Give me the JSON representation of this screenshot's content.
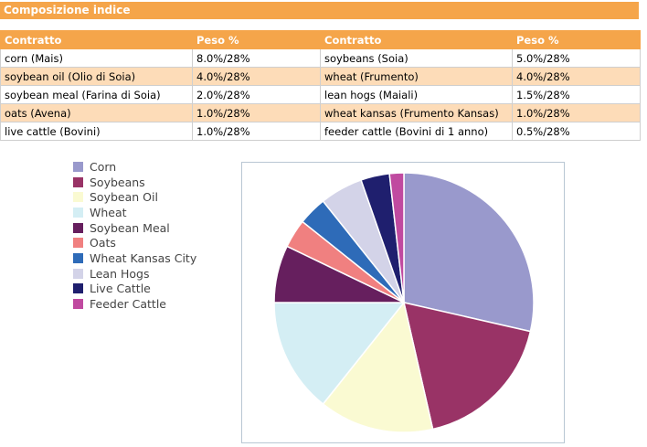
{
  "header": {
    "title": "Composizione indice"
  },
  "table": {
    "headers": [
      "Contratto",
      "Peso %",
      "Contratto",
      "Peso %"
    ],
    "rows": [
      [
        "corn (Mais)",
        "8.0%/28%",
        "soybeans (Soia)",
        "5.0%/28%"
      ],
      [
        "soybean oil (Olio di Soia)",
        "4.0%/28%",
        "wheat (Frumento)",
        "4.0%/28%"
      ],
      [
        "soybean meal (Farina di Soia)",
        "2.0%/28%",
        "lean hogs (Maiali)",
        "1.5%/28%"
      ],
      [
        "oats (Avena)",
        "1.0%/28%",
        "wheat kansas (Frumento Kansas)",
        "1.0%/28%"
      ],
      [
        "live cattle (Bovini)",
        "1.0%/28%",
        "feeder cattle (Bovini di 1 anno)",
        "0.5%/28%"
      ]
    ]
  },
  "chart_data": {
    "type": "pie",
    "legend_position": "left",
    "slices": [
      {
        "label": "Corn",
        "value": 8.0,
        "color": "#9999cc"
      },
      {
        "label": "Soybeans",
        "value": 5.0,
        "color": "#993366"
      },
      {
        "label": "Soybean Oil",
        "value": 4.0,
        "color": "#fafad2"
      },
      {
        "label": "Wheat",
        "value": 4.0,
        "color": "#d4eef4"
      },
      {
        "label": "Soybean Meal",
        "value": 2.0,
        "color": "#661f5e"
      },
      {
        "label": "Oats",
        "value": 1.0,
        "color": "#f08080"
      },
      {
        "label": "Wheat Kansas City",
        "value": 1.0,
        "color": "#2e6bb8"
      },
      {
        "label": "Lean Hogs",
        "value": 1.5,
        "color": "#d3d3e8"
      },
      {
        "label": "Live Cattle",
        "value": 1.0,
        "color": "#1f1f6e"
      },
      {
        "label": "Feeder Cattle",
        "value": 0.5,
        "color": "#c04aa0"
      }
    ]
  }
}
